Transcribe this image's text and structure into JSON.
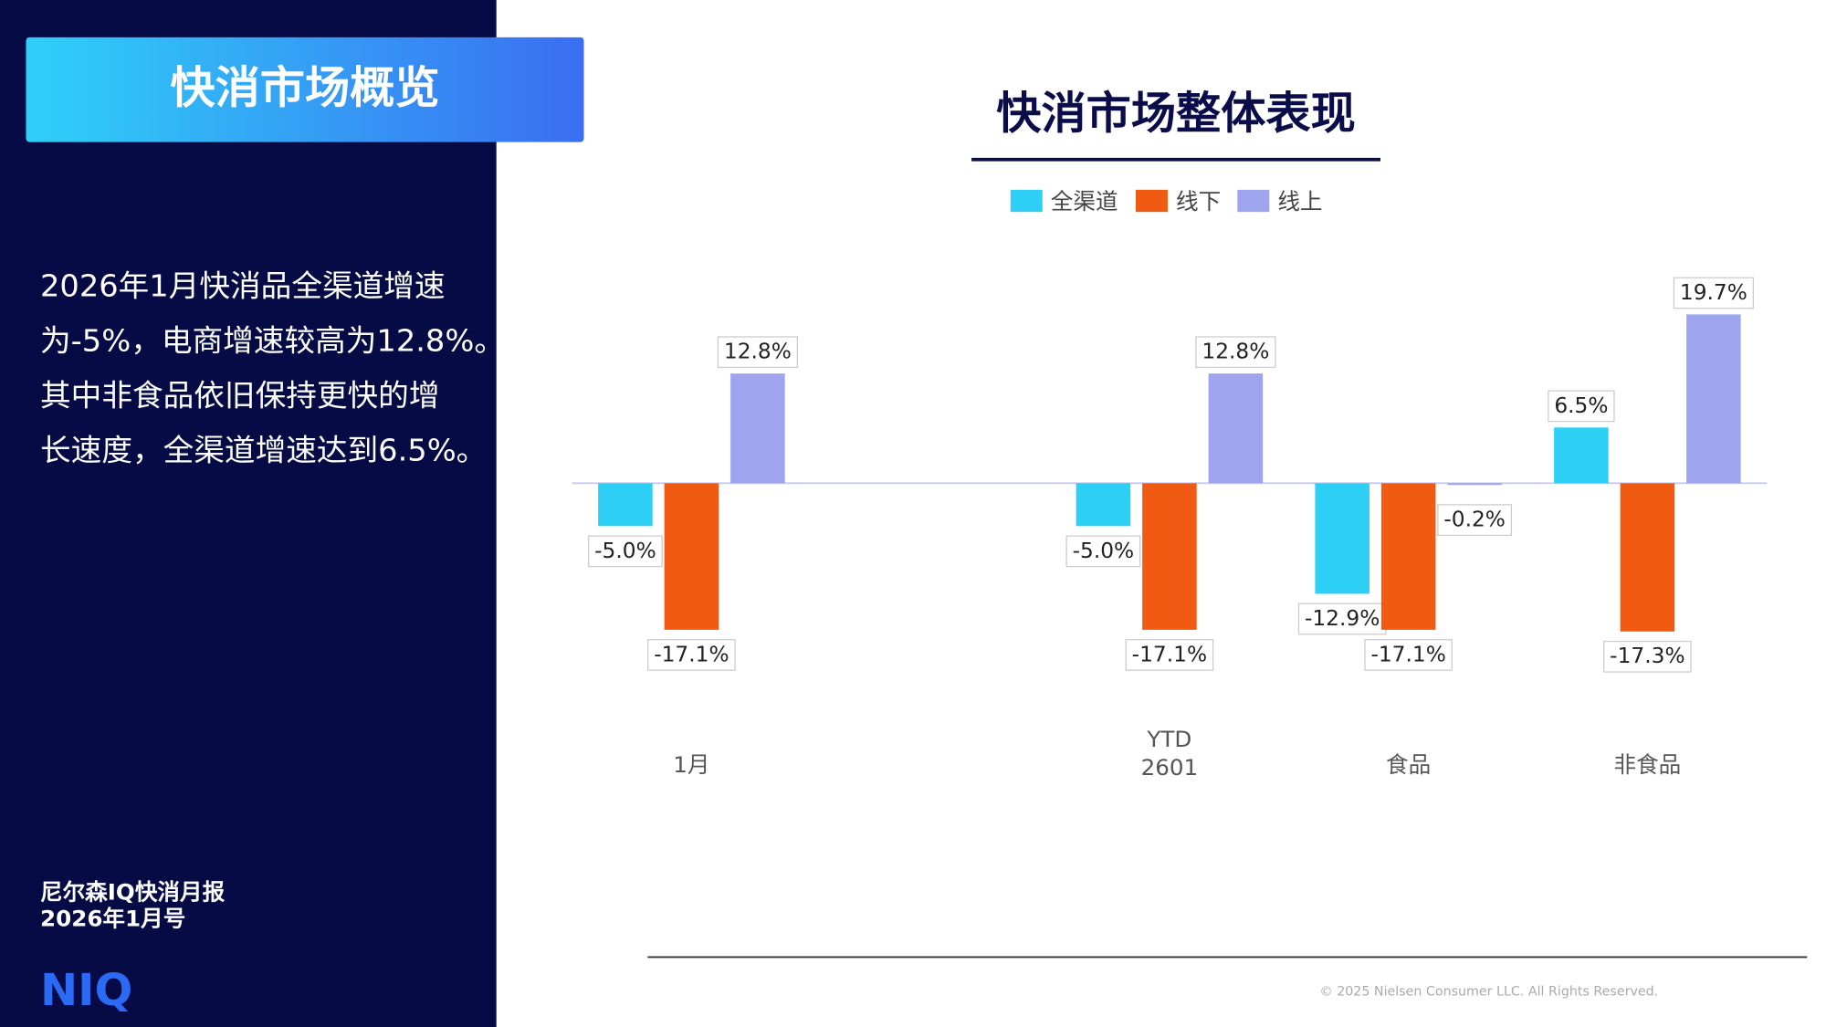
{
  "sidebar": {
    "title": "快消市场概览",
    "paragraph": [
      "2026年1月快消品全渠道增速",
      "为-5%，电商增速较高为12.8%。",
      "其中非食品依旧保持更快的增",
      "长速度，全渠道增速达到6.5%。"
    ],
    "report": [
      "尼尔森IQ快消月报",
      "2026年1月号"
    ],
    "logo": "NIQ"
  },
  "footer": "© 2025 Nielsen Consumer LLC. All Rights Reserved.",
  "chart_data": {
    "type": "bar",
    "title": "快消市场整体表现",
    "categories": [
      "1月",
      null,
      "YTD 2601",
      "食品",
      "非食品"
    ],
    "series": [
      {
        "name": "全渠道",
        "color": "#2dcff5",
        "values": [
          -5.0,
          null,
          -5.0,
          -12.9,
          6.5
        ],
        "value_labels": [
          "-5.0%",
          null,
          "-5.0%",
          "-12.9%",
          "6.5%"
        ]
      },
      {
        "name": "线下",
        "color": "#f15a12",
        "values": [
          -17.1,
          null,
          -17.1,
          -17.1,
          -17.3
        ],
        "value_labels": [
          "-17.1%",
          null,
          "-17.1%",
          "-17.1%",
          "-17.3%"
        ]
      },
      {
        "name": "线上",
        "color": "#9ea4ee",
        "values": [
          12.8,
          null,
          12.8,
          -0.2,
          19.7
        ],
        "value_labels": [
          "12.8%",
          null,
          "12.8%",
          "-0.2%",
          "19.7%"
        ]
      }
    ],
    "ylim": [
      -25,
      25
    ],
    "legend": "top"
  }
}
